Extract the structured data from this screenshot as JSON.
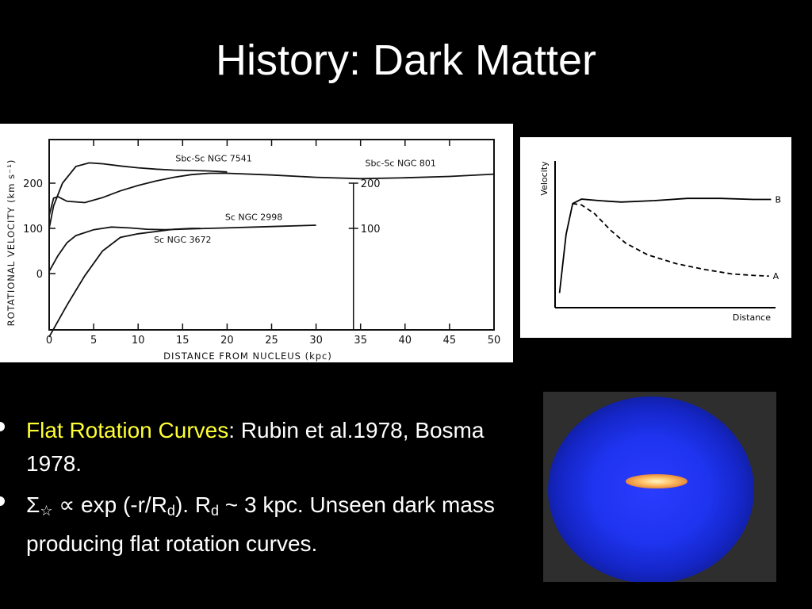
{
  "slide": {
    "title": "History:  Dark Matter"
  },
  "bullets": [
    {
      "highlight": "Flat Rotation Curves",
      "text": ": Rubin et al.1978, Bosma 1978."
    },
    {
      "sigma": "Σ",
      "sigma_sub": "☆",
      "part1": " ∝ exp (-r/R",
      "rd_sub": "d",
      "part2": ").  R",
      "rd_sub2": "d",
      "part3": " ~ 3 kpc.  Unseen dark mass producing flat rotation curves."
    }
  ],
  "colors": {
    "background": "#000000",
    "highlight": "#ffff33",
    "text": "#ffffff",
    "halo": "#1e34ef",
    "disk": "#ffc46a"
  },
  "chart_data": [
    {
      "type": "line",
      "xlabel": "DISTANCE  FROM  NUCLEUS    (kpc)",
      "ylabel": "ROTATIONAL  VELOCITY  (km s⁻¹)",
      "xlim": [
        0,
        50
      ],
      "x_ticks": [
        0,
        5,
        10,
        15,
        20,
        25,
        30,
        35,
        40,
        45,
        50
      ],
      "y_ticks": [
        0,
        100,
        200
      ],
      "inset_axis_ticks": [
        100,
        200
      ],
      "grid": false,
      "series": [
        {
          "name": "Sbc-Sc NGC 7541",
          "points": [
            [
              0,
              100
            ],
            [
              0.5,
              150
            ],
            [
              1.5,
              200
            ],
            [
              3,
              237
            ],
            [
              4.5,
              245
            ],
            [
              6,
              243
            ],
            [
              8,
              238
            ],
            [
              10,
              234
            ],
            [
              12,
              231
            ],
            [
              14,
              229
            ],
            [
              16,
              228
            ],
            [
              18,
              227
            ],
            [
              20,
              225
            ]
          ],
          "label_at": [
            18.5,
            248
          ]
        },
        {
          "name": "Sbc-Sc  NGC 801",
          "points": [
            [
              0,
              128
            ],
            [
              0.5,
              167
            ],
            [
              1,
              170
            ],
            [
              2,
              160
            ],
            [
              4,
              157
            ],
            [
              6,
              168
            ],
            [
              8,
              183
            ],
            [
              10,
              195
            ],
            [
              12,
              205
            ],
            [
              14,
              213
            ],
            [
              16,
              219
            ],
            [
              18,
              222
            ],
            [
              20,
              222
            ],
            [
              25,
              218
            ],
            [
              30,
              213
            ],
            [
              35,
              210
            ],
            [
              40,
              212
            ],
            [
              45,
              215
            ],
            [
              50,
              220
            ]
          ],
          "label_at": [
            39.5,
            238
          ]
        },
        {
          "name": "Sc NGC 2998",
          "points": [
            [
              0,
              5
            ],
            [
              1,
              40
            ],
            [
              2,
              68
            ],
            [
              3,
              84
            ],
            [
              5,
              97
            ],
            [
              7,
              103
            ],
            [
              9,
              101
            ],
            [
              11,
              98
            ],
            [
              13,
              97
            ],
            [
              16,
              99
            ],
            [
              20,
              101
            ],
            [
              25,
              104
            ],
            [
              30,
              107
            ]
          ],
          "label_at": [
            23,
            118
          ]
        },
        {
          "name": "Sc  NGC 3672",
          "points": [
            [
              0,
              -140
            ],
            [
              2,
              -70
            ],
            [
              4,
              -5
            ],
            [
              6,
              50
            ],
            [
              8,
              80
            ],
            [
              10,
              88
            ],
            [
              12,
              93
            ],
            [
              14,
              98
            ],
            [
              16,
              100
            ],
            [
              17,
              100
            ]
          ],
          "label_at": [
            15,
            68
          ]
        }
      ]
    },
    {
      "type": "line",
      "xlabel": "Distance",
      "ylabel": "Velocity",
      "series": [
        {
          "name": "B",
          "points": [
            [
              0.02,
              0.1
            ],
            [
              0.05,
              0.5
            ],
            [
              0.08,
              0.71
            ],
            [
              0.12,
              0.74
            ],
            [
              0.2,
              0.73
            ],
            [
              0.3,
              0.72
            ],
            [
              0.45,
              0.73
            ],
            [
              0.6,
              0.745
            ],
            [
              0.75,
              0.745
            ],
            [
              0.9,
              0.738
            ],
            [
              0.98,
              0.738
            ]
          ]
        },
        {
          "name": "A",
          "points": [
            [
              0.08,
              0.71
            ],
            [
              0.12,
              0.7
            ],
            [
              0.18,
              0.64
            ],
            [
              0.25,
              0.53
            ],
            [
              0.32,
              0.44
            ],
            [
              0.42,
              0.36
            ],
            [
              0.55,
              0.3
            ],
            [
              0.68,
              0.26
            ],
            [
              0.8,
              0.23
            ],
            [
              0.9,
              0.22
            ],
            [
              0.97,
              0.215
            ]
          ]
        }
      ]
    }
  ]
}
